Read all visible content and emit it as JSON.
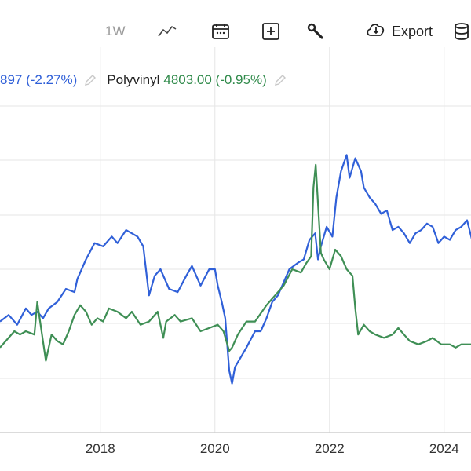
{
  "toolbar": {
    "interval_label": "1W",
    "export_label": "Export",
    "icons": [
      "line-chart-icon",
      "calendar-icon",
      "add-icon",
      "wrench-icon",
      "cloud-download-icon",
      "database-icon"
    ]
  },
  "legend": {
    "series1_value_text": "897 (-2.27%)",
    "series2_name": "Polyvinyl",
    "series2_value_text": "4803.00 (-0.95%)"
  },
  "colors": {
    "blue": "#3060d8",
    "green": "#3f8f55",
    "grid": "#e6e6e6",
    "axis": "#cfcfcf"
  },
  "chart_data": {
    "type": "line",
    "x_ticks": [
      "2018",
      "2020",
      "2022",
      "2024"
    ],
    "x_range": [
      2016.25,
      2024.5
    ],
    "y_range": [
      0,
      100
    ],
    "grid": true,
    "legend_position": "top-left",
    "series": [
      {
        "name": "",
        "color": "#3060d8",
        "points": [
          [
            2016.25,
            34
          ],
          [
            2016.4,
            36
          ],
          [
            2016.55,
            33
          ],
          [
            2016.7,
            38
          ],
          [
            2016.8,
            36
          ],
          [
            2016.9,
            37
          ],
          [
            2017.0,
            35
          ],
          [
            2017.1,
            38
          ],
          [
            2017.25,
            40
          ],
          [
            2017.4,
            44
          ],
          [
            2017.55,
            43
          ],
          [
            2017.6,
            47
          ],
          [
            2017.75,
            53
          ],
          [
            2017.9,
            58
          ],
          [
            2018.05,
            57
          ],
          [
            2018.2,
            60
          ],
          [
            2018.3,
            58
          ],
          [
            2018.45,
            62
          ],
          [
            2018.55,
            61
          ],
          [
            2018.65,
            60
          ],
          [
            2018.75,
            57
          ],
          [
            2018.85,
            42
          ],
          [
            2018.95,
            48
          ],
          [
            2019.05,
            50
          ],
          [
            2019.2,
            44
          ],
          [
            2019.35,
            43
          ],
          [
            2019.5,
            48
          ],
          [
            2019.6,
            51
          ],
          [
            2019.75,
            45
          ],
          [
            2019.9,
            50
          ],
          [
            2020.0,
            50
          ],
          [
            2020.05,
            45
          ],
          [
            2020.12,
            40
          ],
          [
            2020.18,
            35
          ],
          [
            2020.25,
            19
          ],
          [
            2020.3,
            15
          ],
          [
            2020.35,
            20
          ],
          [
            2020.45,
            23
          ],
          [
            2020.55,
            26
          ],
          [
            2020.7,
            31
          ],
          [
            2020.8,
            31
          ],
          [
            2020.9,
            35
          ],
          [
            2021.0,
            40
          ],
          [
            2021.1,
            42
          ],
          [
            2021.2,
            46
          ],
          [
            2021.3,
            50
          ],
          [
            2021.45,
            52
          ],
          [
            2021.55,
            53
          ],
          [
            2021.65,
            59
          ],
          [
            2021.75,
            61
          ],
          [
            2021.8,
            53
          ],
          [
            2021.85,
            57
          ],
          [
            2021.95,
            63
          ],
          [
            2022.05,
            60
          ],
          [
            2022.12,
            72
          ],
          [
            2022.2,
            80
          ],
          [
            2022.3,
            85
          ],
          [
            2022.35,
            78
          ],
          [
            2022.45,
            84
          ],
          [
            2022.55,
            80
          ],
          [
            2022.6,
            75
          ],
          [
            2022.7,
            72
          ],
          [
            2022.8,
            70
          ],
          [
            2022.9,
            67
          ],
          [
            2023.0,
            68
          ],
          [
            2023.1,
            62
          ],
          [
            2023.2,
            63
          ],
          [
            2023.3,
            61
          ],
          [
            2023.4,
            58
          ],
          [
            2023.5,
            61
          ],
          [
            2023.6,
            62
          ],
          [
            2023.7,
            64
          ],
          [
            2023.8,
            63
          ],
          [
            2023.9,
            58
          ],
          [
            2024.0,
            60
          ],
          [
            2024.1,
            59
          ],
          [
            2024.2,
            62
          ],
          [
            2024.3,
            63
          ],
          [
            2024.4,
            65
          ],
          [
            2024.5,
            58
          ]
        ]
      },
      {
        "name": "Polyvinyl",
        "color": "#3f8f55",
        "points": [
          [
            2016.25,
            26
          ],
          [
            2016.35,
            28
          ],
          [
            2016.5,
            31
          ],
          [
            2016.6,
            30
          ],
          [
            2016.7,
            31
          ],
          [
            2016.85,
            30
          ],
          [
            2016.9,
            40
          ],
          [
            2016.95,
            34
          ],
          [
            2017.05,
            22
          ],
          [
            2017.15,
            30
          ],
          [
            2017.25,
            28
          ],
          [
            2017.35,
            27
          ],
          [
            2017.45,
            31
          ],
          [
            2017.55,
            36
          ],
          [
            2017.65,
            39
          ],
          [
            2017.75,
            37
          ],
          [
            2017.85,
            33
          ],
          [
            2017.95,
            35
          ],
          [
            2018.05,
            34
          ],
          [
            2018.15,
            38
          ],
          [
            2018.3,
            37
          ],
          [
            2018.45,
            35
          ],
          [
            2018.55,
            37
          ],
          [
            2018.7,
            33
          ],
          [
            2018.85,
            34
          ],
          [
            2019.0,
            37
          ],
          [
            2019.1,
            29
          ],
          [
            2019.15,
            34
          ],
          [
            2019.3,
            36
          ],
          [
            2019.4,
            34
          ],
          [
            2019.6,
            35
          ],
          [
            2019.75,
            31
          ],
          [
            2019.9,
            32
          ],
          [
            2020.05,
            33
          ],
          [
            2020.15,
            31
          ],
          [
            2020.25,
            25
          ],
          [
            2020.3,
            26
          ],
          [
            2020.4,
            30
          ],
          [
            2020.55,
            34
          ],
          [
            2020.7,
            34
          ],
          [
            2020.9,
            39
          ],
          [
            2021.05,
            42
          ],
          [
            2021.2,
            45
          ],
          [
            2021.35,
            50
          ],
          [
            2021.5,
            49
          ],
          [
            2021.6,
            52
          ],
          [
            2021.68,
            54
          ],
          [
            2021.72,
            75
          ],
          [
            2021.76,
            82
          ],
          [
            2021.8,
            70
          ],
          [
            2021.85,
            55
          ],
          [
            2021.9,
            53
          ],
          [
            2022.0,
            50
          ],
          [
            2022.1,
            56
          ],
          [
            2022.2,
            54
          ],
          [
            2022.3,
            50
          ],
          [
            2022.4,
            48
          ],
          [
            2022.45,
            38
          ],
          [
            2022.5,
            30
          ],
          [
            2022.6,
            33
          ],
          [
            2022.7,
            31
          ],
          [
            2022.8,
            30
          ],
          [
            2022.95,
            29
          ],
          [
            2023.1,
            30
          ],
          [
            2023.2,
            32
          ],
          [
            2023.3,
            30
          ],
          [
            2023.4,
            28
          ],
          [
            2023.55,
            27
          ],
          [
            2023.7,
            28
          ],
          [
            2023.8,
            29
          ],
          [
            2023.95,
            27
          ],
          [
            2024.1,
            27
          ],
          [
            2024.2,
            26
          ],
          [
            2024.3,
            27
          ],
          [
            2024.5,
            27
          ]
        ]
      }
    ]
  }
}
